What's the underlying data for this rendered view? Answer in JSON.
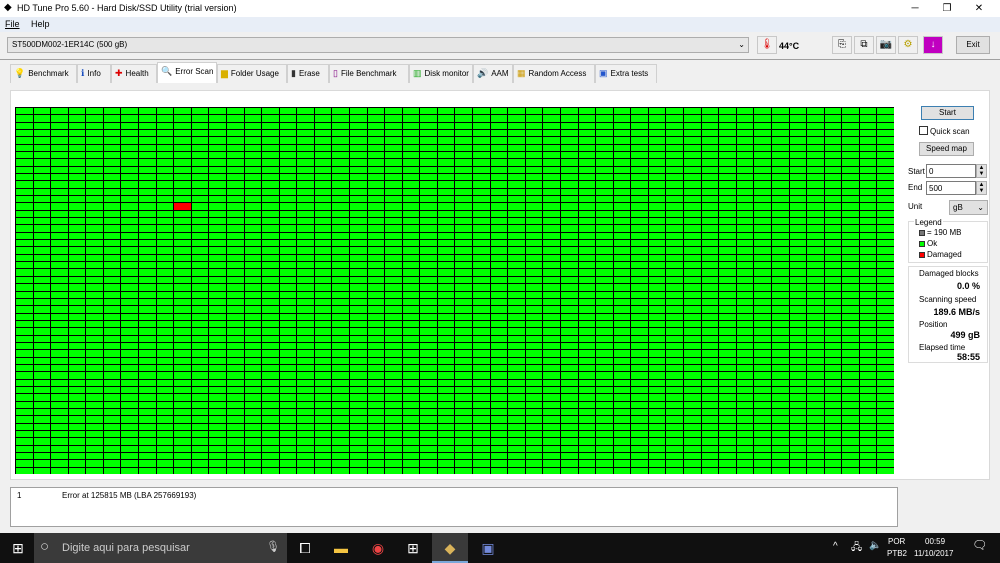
{
  "window": {
    "title": "HD Tune Pro 5.60 - Hard Disk/SSD Utility (trial version)",
    "minimize": "─",
    "maximize": "❐",
    "close": "✕"
  },
  "menu": {
    "file": "File",
    "help": "Help"
  },
  "toolbar": {
    "drive": "ST500DM002-1ER14C (500 gB)",
    "temperature": "44°C",
    "exit": "Exit"
  },
  "tabs": [
    {
      "label": "Benchmark",
      "icon": "lightbulb-icon"
    },
    {
      "label": "Info",
      "icon": "info-icon"
    },
    {
      "label": "Health",
      "icon": "health-cross-icon"
    },
    {
      "label": "Error Scan",
      "icon": "magnifier-icon"
    },
    {
      "label": "Folder Usage",
      "icon": "folder-icon"
    },
    {
      "label": "Erase",
      "icon": "trash-icon"
    },
    {
      "label": "File Benchmark",
      "icon": "file-benchmark-icon"
    },
    {
      "label": "Disk monitor",
      "icon": "disk-monitor-icon"
    },
    {
      "label": "AAM",
      "icon": "speaker-icon"
    },
    {
      "label": "Random Access",
      "icon": "random-access-icon"
    },
    {
      "label": "Extra tests",
      "icon": "extra-tests-icon"
    }
  ],
  "active_tab": "Error Scan",
  "scan": {
    "grid": {
      "columns": 50,
      "rows": 50,
      "damaged_cells": [
        {
          "row": 13,
          "col": 9
        }
      ],
      "ok_color": "#00ff00",
      "damaged_color": "#ff0000"
    },
    "start_button": "Start",
    "quick_scan_label": "Quick scan",
    "quick_scan_checked": false,
    "speed_map_button": "Speed map",
    "start_label": "Start",
    "start_value": "0",
    "end_label": "End",
    "end_value": "500",
    "unit_label": "Unit",
    "unit_value": "gB",
    "legend": {
      "title": "Legend",
      "block": "= 190 MB",
      "ok": "Ok",
      "damaged": "Damaged"
    },
    "stats": {
      "damaged_blocks_label": "Damaged blocks",
      "damaged_blocks": "0.0 %",
      "scanning_speed_label": "Scanning speed",
      "scanning_speed": "189.6 MB/s",
      "position_label": "Position",
      "position": "499 gB",
      "elapsed_label": "Elapsed time",
      "elapsed": "58:55"
    }
  },
  "errors": [
    {
      "index": "1",
      "message": "Error at 125815 MB (LBA 257669193)"
    }
  ],
  "taskbar": {
    "search_placeholder": "Digite aqui para pesquisar",
    "lang1": "POR",
    "lang2": "PTB2",
    "time": "00:59",
    "date": "11/10/2017"
  }
}
